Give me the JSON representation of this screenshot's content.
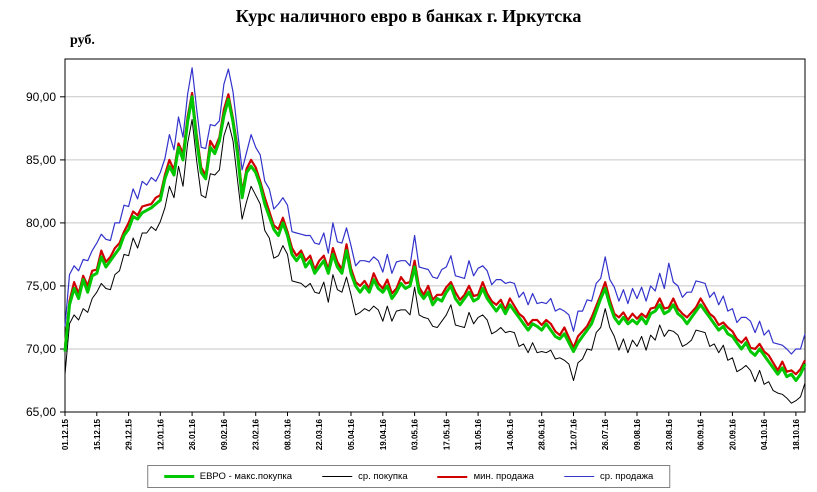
{
  "chart_data": {
    "type": "line",
    "title": "Курс наличного евро в банках г. Иркутска",
    "ylabel": "руб.",
    "xlabel": "",
    "ylim": [
      65,
      93
    ],
    "grid": true,
    "legend_position": "bottom",
    "y_ticks": [
      {
        "value": 65,
        "label": "65,00"
      },
      {
        "value": 70,
        "label": "70,00"
      },
      {
        "value": 75,
        "label": "75,00"
      },
      {
        "value": 80,
        "label": "80,00"
      },
      {
        "value": 85,
        "label": "85,00"
      },
      {
        "value": 90,
        "label": "90,00"
      }
    ],
    "x_tick_step": 7,
    "x_tick_labels": [
      "01.12.15",
      "15.12.15",
      "29.12.15",
      "12.01.16",
      "26.01.16",
      "09.02.16",
      "23.02.16",
      "08.03.16",
      "22.03.16",
      "05.04.16",
      "19.04.16",
      "03.05.16",
      "17.05.16",
      "31.05.16",
      "14.06.16",
      "28.06.16",
      "12.07.16",
      "26.07.16",
      "09.08.16",
      "23.08.16",
      "06.09.16",
      "20.09.16",
      "04.10.16",
      "18.10.16"
    ],
    "series": [
      {
        "name": "ЕВРО - макс.покупка",
        "color": "#00C800",
        "width": 3,
        "values": [
          69.8,
          73.5,
          74.8,
          74.0,
          75.5,
          74.5,
          75.8,
          76.0,
          77.3,
          76.5,
          77.0,
          77.5,
          78.0,
          79.0,
          79.5,
          80.5,
          80.3,
          80.8,
          81.0,
          81.2,
          81.5,
          81.8,
          83.5,
          84.5,
          83.8,
          86.0,
          85.0,
          88.0,
          90.0,
          86.5,
          84.0,
          83.5,
          86.0,
          85.5,
          86.5,
          88.5,
          89.8,
          88.0,
          85.5,
          82.0,
          84.0,
          84.5,
          84.0,
          83.0,
          81.5,
          80.5,
          79.5,
          79.0,
          80.0,
          79.0,
          77.5,
          77.0,
          77.5,
          76.5,
          77.0,
          76.0,
          76.5,
          77.0,
          76.0,
          77.5,
          76.5,
          76.0,
          77.8,
          76.0,
          75.0,
          74.5,
          75.0,
          74.5,
          75.5,
          74.8,
          74.5,
          75.0,
          74.0,
          74.5,
          75.2,
          74.8,
          75.0,
          76.5,
          74.5,
          74.0,
          74.5,
          73.5,
          74.0,
          73.8,
          74.5,
          75.0,
          74.0,
          73.5,
          74.0,
          74.5,
          73.8,
          74.0,
          74.8,
          74.0,
          73.5,
          73.0,
          73.5,
          72.8,
          73.5,
          73.0,
          72.5,
          72.0,
          71.5,
          72.0,
          71.8,
          71.5,
          72.0,
          71.5,
          71.0,
          70.8,
          71.2,
          70.5,
          69.8,
          70.5,
          71.0,
          71.5,
          72.0,
          73.0,
          74.0,
          74.8,
          73.5,
          72.5,
          72.0,
          72.5,
          72.0,
          72.3,
          72.0,
          72.5,
          72.0,
          72.8,
          73.0,
          73.5,
          72.8,
          73.0,
          73.5,
          72.8,
          72.5,
          72.0,
          72.5,
          73.0,
          73.5,
          73.0,
          72.5,
          72.0,
          71.5,
          71.8,
          71.2,
          71.0,
          70.5,
          70.0,
          70.5,
          69.8,
          69.5,
          70.0,
          69.5,
          69.0,
          68.5,
          68.0,
          68.5,
          67.8,
          68.0,
          67.5,
          68.0,
          68.8
        ]
      },
      {
        "name": "ср. покупка",
        "color": "#000000",
        "width": 1,
        "values": [
          68.0,
          72.0,
          72.7,
          72.3,
          73.2,
          72.9,
          74.0,
          74.5,
          75.2,
          74.8,
          74.7,
          75.9,
          76.2,
          77.5,
          77.4,
          78.8,
          78.0,
          79.2,
          79.2,
          79.7,
          79.4,
          80.1,
          81.2,
          82.9,
          82.0,
          84.5,
          82.9,
          86.3,
          88.2,
          84.9,
          82.2,
          82.0,
          83.9,
          83.8,
          84.2,
          86.9,
          88.0,
          86.5,
          83.4,
          80.3,
          81.7,
          82.9,
          82.2,
          81.5,
          79.4,
          78.8,
          77.2,
          77.4,
          78.2,
          77.5,
          75.4,
          75.3,
          75.2,
          74.9,
          75.2,
          74.5,
          74.4,
          75.3,
          73.7,
          75.9,
          74.7,
          74.5,
          75.7,
          74.3,
          72.7,
          72.9,
          73.2,
          73.0,
          73.4,
          73.1,
          72.2,
          73.4,
          72.2,
          73.0,
          73.1,
          73.1,
          72.7,
          74.9,
          72.7,
          72.5,
          72.4,
          71.8,
          71.7,
          72.2,
          72.7,
          73.5,
          71.9,
          71.8,
          71.7,
          72.9,
          72.0,
          72.5,
          72.7,
          72.3,
          71.2,
          71.4,
          71.7,
          71.3,
          71.4,
          71.3,
          70.2,
          70.4,
          69.7,
          70.5,
          69.7,
          69.8,
          69.7,
          69.9,
          69.2,
          69.3,
          69.1,
          68.8,
          67.5,
          68.9,
          69.2,
          70.0,
          69.9,
          71.3,
          71.7,
          73.2,
          71.7,
          71.0,
          69.9,
          70.8,
          69.7,
          70.7,
          70.2,
          71.0,
          69.9,
          71.1,
          70.7,
          71.9,
          71.0,
          71.5,
          71.4,
          71.1,
          70.2,
          70.4,
          70.7,
          71.5,
          71.4,
          71.3,
          70.2,
          70.4,
          69.7,
          70.3,
          69.1,
          69.3,
          68.2,
          68.4,
          68.7,
          68.3,
          67.4,
          68.3,
          67.2,
          67.4,
          66.7,
          66.5,
          66.4,
          66.1,
          65.7,
          65.9,
          66.2,
          67.3
        ]
      },
      {
        "name": "мин. продажа",
        "color": "#D00000",
        "width": 2.2,
        "values": [
          70.2,
          73.8,
          75.3,
          74.4,
          75.8,
          75.0,
          76.2,
          76.3,
          77.8,
          76.9,
          77.3,
          78.0,
          78.4,
          79.3,
          80.0,
          80.9,
          80.6,
          81.3,
          81.4,
          81.5,
          82.0,
          82.2,
          83.8,
          85.0,
          84.2,
          86.3,
          85.5,
          88.4,
          90.3,
          87.0,
          84.4,
          83.8,
          86.5,
          85.9,
          86.8,
          89.0,
          90.2,
          88.3,
          86.0,
          82.4,
          84.3,
          85.0,
          84.4,
          83.3,
          82.0,
          80.9,
          79.8,
          79.5,
          80.4,
          79.3,
          78.0,
          77.4,
          77.8,
          77.0,
          77.4,
          76.3,
          77.0,
          77.4,
          76.3,
          78.0,
          76.9,
          76.3,
          78.3,
          76.4,
          75.3,
          75.0,
          75.4,
          74.8,
          76.0,
          75.2,
          74.8,
          75.5,
          74.4,
          74.8,
          75.7,
          75.2,
          75.3,
          77.0,
          74.9,
          74.3,
          75.0,
          73.9,
          74.3,
          74.3,
          74.9,
          75.3,
          74.5,
          73.9,
          74.3,
          75.0,
          74.2,
          74.3,
          75.3,
          74.4,
          73.8,
          73.5,
          73.9,
          73.1,
          74.0,
          73.4,
          72.8,
          72.5,
          71.9,
          72.3,
          72.3,
          71.9,
          72.3,
          72.0,
          71.4,
          71.1,
          71.7,
          70.9,
          70.1,
          71.0,
          71.4,
          71.8,
          72.5,
          73.4,
          74.3,
          75.3,
          73.9,
          72.8,
          72.5,
          72.9,
          72.3,
          72.8,
          72.4,
          72.8,
          72.5,
          73.2,
          73.3,
          74.0,
          73.2,
          73.3,
          74.0,
          73.2,
          72.8,
          72.5,
          72.9,
          73.3,
          74.0,
          73.4,
          72.8,
          72.5,
          71.9,
          72.1,
          71.7,
          71.4,
          70.8,
          70.5,
          70.9,
          70.1,
          70.0,
          70.4,
          69.8,
          69.5,
          68.9,
          68.3,
          69.0,
          68.2,
          68.3,
          68.0,
          68.4,
          69.1
        ]
      },
      {
        "name": "ср. продажа",
        "color": "#3333CC",
        "width": 1.2,
        "values": [
          71.8,
          75.9,
          76.6,
          76.2,
          77.1,
          77.0,
          77.8,
          78.4,
          79.1,
          78.7,
          78.6,
          80.0,
          80.0,
          81.4,
          81.3,
          82.7,
          81.9,
          83.3,
          83.0,
          83.6,
          83.3,
          84.0,
          85.1,
          87.0,
          85.8,
          88.4,
          86.8,
          90.2,
          92.3,
          89.0,
          86.0,
          85.9,
          87.8,
          87.7,
          88.1,
          91.0,
          92.2,
          90.4,
          87.3,
          84.2,
          85.6,
          87.0,
          86.0,
          85.4,
          83.3,
          82.7,
          81.1,
          81.5,
          82.0,
          81.4,
          79.3,
          79.2,
          79.1,
          79.0,
          79.0,
          78.4,
          78.3,
          79.2,
          77.6,
          80.0,
          78.5,
          78.4,
          79.6,
          78.2,
          76.6,
          77.0,
          77.0,
          76.9,
          77.3,
          77.0,
          76.1,
          77.5,
          76.0,
          76.9,
          77.0,
          77.0,
          76.6,
          79.0,
          76.5,
          76.4,
          76.3,
          75.7,
          75.6,
          76.3,
          76.5,
          77.4,
          75.8,
          75.7,
          75.6,
          77.0,
          75.8,
          76.4,
          76.6,
          76.2,
          75.1,
          75.5,
          75.5,
          75.2,
          75.3,
          75.2,
          74.1,
          74.5,
          73.5,
          74.4,
          73.6,
          73.7,
          73.6,
          74.0,
          73.0,
          73.2,
          73.0,
          72.7,
          71.4,
          73.0,
          73.0,
          73.9,
          73.8,
          75.2,
          75.6,
          77.3,
          75.5,
          74.9,
          73.8,
          74.7,
          73.6,
          74.8,
          74.0,
          74.9,
          73.8,
          75.0,
          74.6,
          76.0,
          74.8,
          76.8,
          75.3,
          75.0,
          74.1,
          74.5,
          74.5,
          75.4,
          75.3,
          75.2,
          74.1,
          74.5,
          73.5,
          74.2,
          73.0,
          73.2,
          72.1,
          72.5,
          72.5,
          72.2,
          71.3,
          72.2,
          71.1,
          71.5,
          70.5,
          70.4,
          70.3,
          70.0,
          69.6,
          70.0,
          70.0,
          71.2
        ]
      }
    ]
  }
}
